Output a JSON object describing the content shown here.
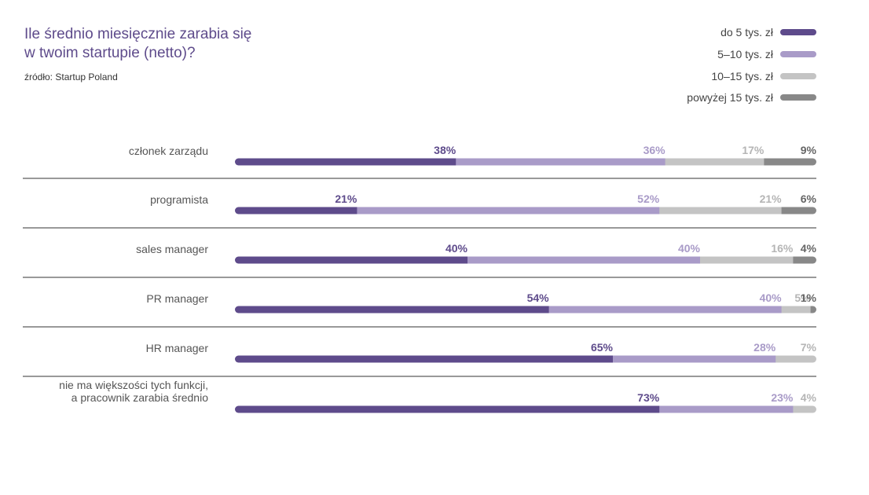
{
  "title": [
    "Ile średnio miesięcznie zarabia się",
    "w twoim startupie (netto)?"
  ],
  "source": "źródło: Startup Poland",
  "colors": [
    "#5e4b8b",
    "#a99bc8",
    "#c4c4c4",
    "#888888"
  ],
  "label_colors": [
    "#5e4b8b",
    "#a99bc8",
    "#b5b5b5",
    "#666666"
  ],
  "chart_data": {
    "type": "bar",
    "orientation": "horizontal",
    "stacked": true,
    "legend_position": "top-right",
    "categories": [
      [
        "członek zarządu"
      ],
      [
        "programista"
      ],
      [
        "sales manager"
      ],
      [
        "PR manager"
      ],
      [
        "HR manager"
      ],
      [
        "nie ma większości tych funkcji,",
        "a pracownik zarabia średnio"
      ]
    ],
    "series": [
      {
        "name": "do 5 tys. zł",
        "values": [
          38,
          21,
          40,
          54,
          65,
          73
        ]
      },
      {
        "name": "5–10 tys. zł",
        "values": [
          36,
          52,
          40,
          40,
          28,
          23
        ]
      },
      {
        "name": "10–15 tys. zł",
        "values": [
          17,
          21,
          16,
          5,
          7,
          4
        ]
      },
      {
        "name": "powyżej 15 tys. zł",
        "values": [
          9,
          6,
          4,
          1,
          0,
          0
        ]
      }
    ],
    "value_labels": [
      [
        "38%",
        "36%",
        "17%",
        "9%"
      ],
      [
        "21%",
        "52%",
        "21%",
        "6%"
      ],
      [
        "40%",
        "40%",
        "16%",
        "4%"
      ],
      [
        "54%",
        "40%",
        "5%",
        "1%"
      ],
      [
        "65%",
        "28%",
        "7%",
        ""
      ],
      [
        "73%",
        "23%",
        "4%",
        ""
      ]
    ],
    "xlim": [
      0,
      100
    ]
  }
}
